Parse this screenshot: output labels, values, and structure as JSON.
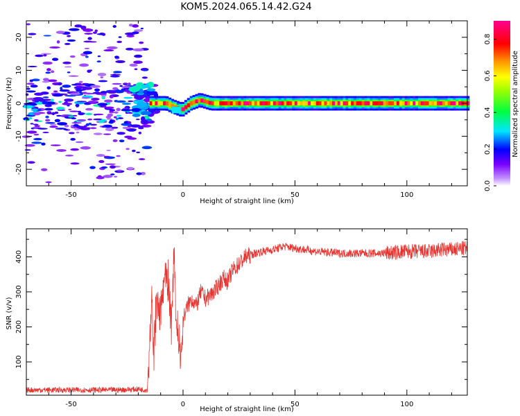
{
  "figure": {
    "title": "KOM5.2024.065.14.42.G24"
  },
  "chart_data": [
    {
      "type": "heatmap",
      "xlabel": "Height of straight line (km)",
      "ylabel": "Frequency (Hz)",
      "xlim": [
        -70,
        127
      ],
      "ylim": [
        -25,
        25
      ],
      "xticks": [
        -50,
        0,
        50,
        100
      ],
      "yticks": [
        -20,
        -10,
        0,
        10,
        20
      ],
      "colorbar": {
        "label": "Normalized spectral amplitude",
        "range": [
          0.0,
          0.9
        ],
        "ticks": [
          0.0,
          0.2,
          0.4,
          0.6,
          0.8
        ],
        "colormap": "hsv-rainbow (white-violet-blue-cyan-green-yellow-orange-red-magenta)"
      },
      "carrier_band": {
        "x_range": [
          -15,
          127
        ],
        "frequency_hz": 0,
        "note_path": [
          [
            -15,
            0
          ],
          [
            -8,
            0
          ],
          [
            -5,
            -1
          ],
          [
            -1,
            -2
          ],
          [
            3,
            0
          ],
          [
            7,
            1
          ],
          [
            12,
            0
          ],
          [
            127,
            0
          ]
        ],
        "levels": "0.4-0.9 along carrier from x=-10 onward"
      },
      "scatter_region": {
        "x_range": [
          -70,
          -15
        ],
        "frequency_range": [
          -25,
          25
        ],
        "levels": "0.05-0.35"
      }
    },
    {
      "type": "line",
      "xlabel": "Height of straight line (km)",
      "ylabel": "SNR (v/v)",
      "xlim": [
        -70,
        127
      ],
      "ylim": [
        5,
        480
      ],
      "xticks": [
        -50,
        0,
        50,
        100
      ],
      "yticks": [
        100,
        200,
        300,
        400
      ],
      "series": [
        {
          "color": "#e8332f",
          "x": [
            -70,
            -60,
            -50,
            -40,
            -30,
            -20,
            -16,
            -15,
            -14,
            -13,
            -12,
            -10,
            -8,
            -6,
            -5,
            -4,
            -3,
            -2,
            -1,
            0,
            2,
            4,
            6,
            8,
            10,
            12,
            15,
            18,
            20,
            22,
            25,
            28,
            30,
            35,
            40,
            45,
            50,
            55,
            60,
            70,
            80,
            90,
            100,
            110,
            115,
            120,
            127
          ],
          "values": [
            20,
            20,
            20,
            20,
            20,
            22,
            20,
            150,
            280,
            120,
            260,
            240,
            340,
            270,
            190,
            450,
            200,
            180,
            120,
            220,
            260,
            280,
            260,
            300,
            280,
            290,
            310,
            340,
            330,
            360,
            380,
            400,
            405,
            415,
            420,
            430,
            425,
            420,
            415,
            410,
            410,
            410,
            415,
            415,
            420,
            420,
            425
          ]
        }
      ]
    }
  ]
}
